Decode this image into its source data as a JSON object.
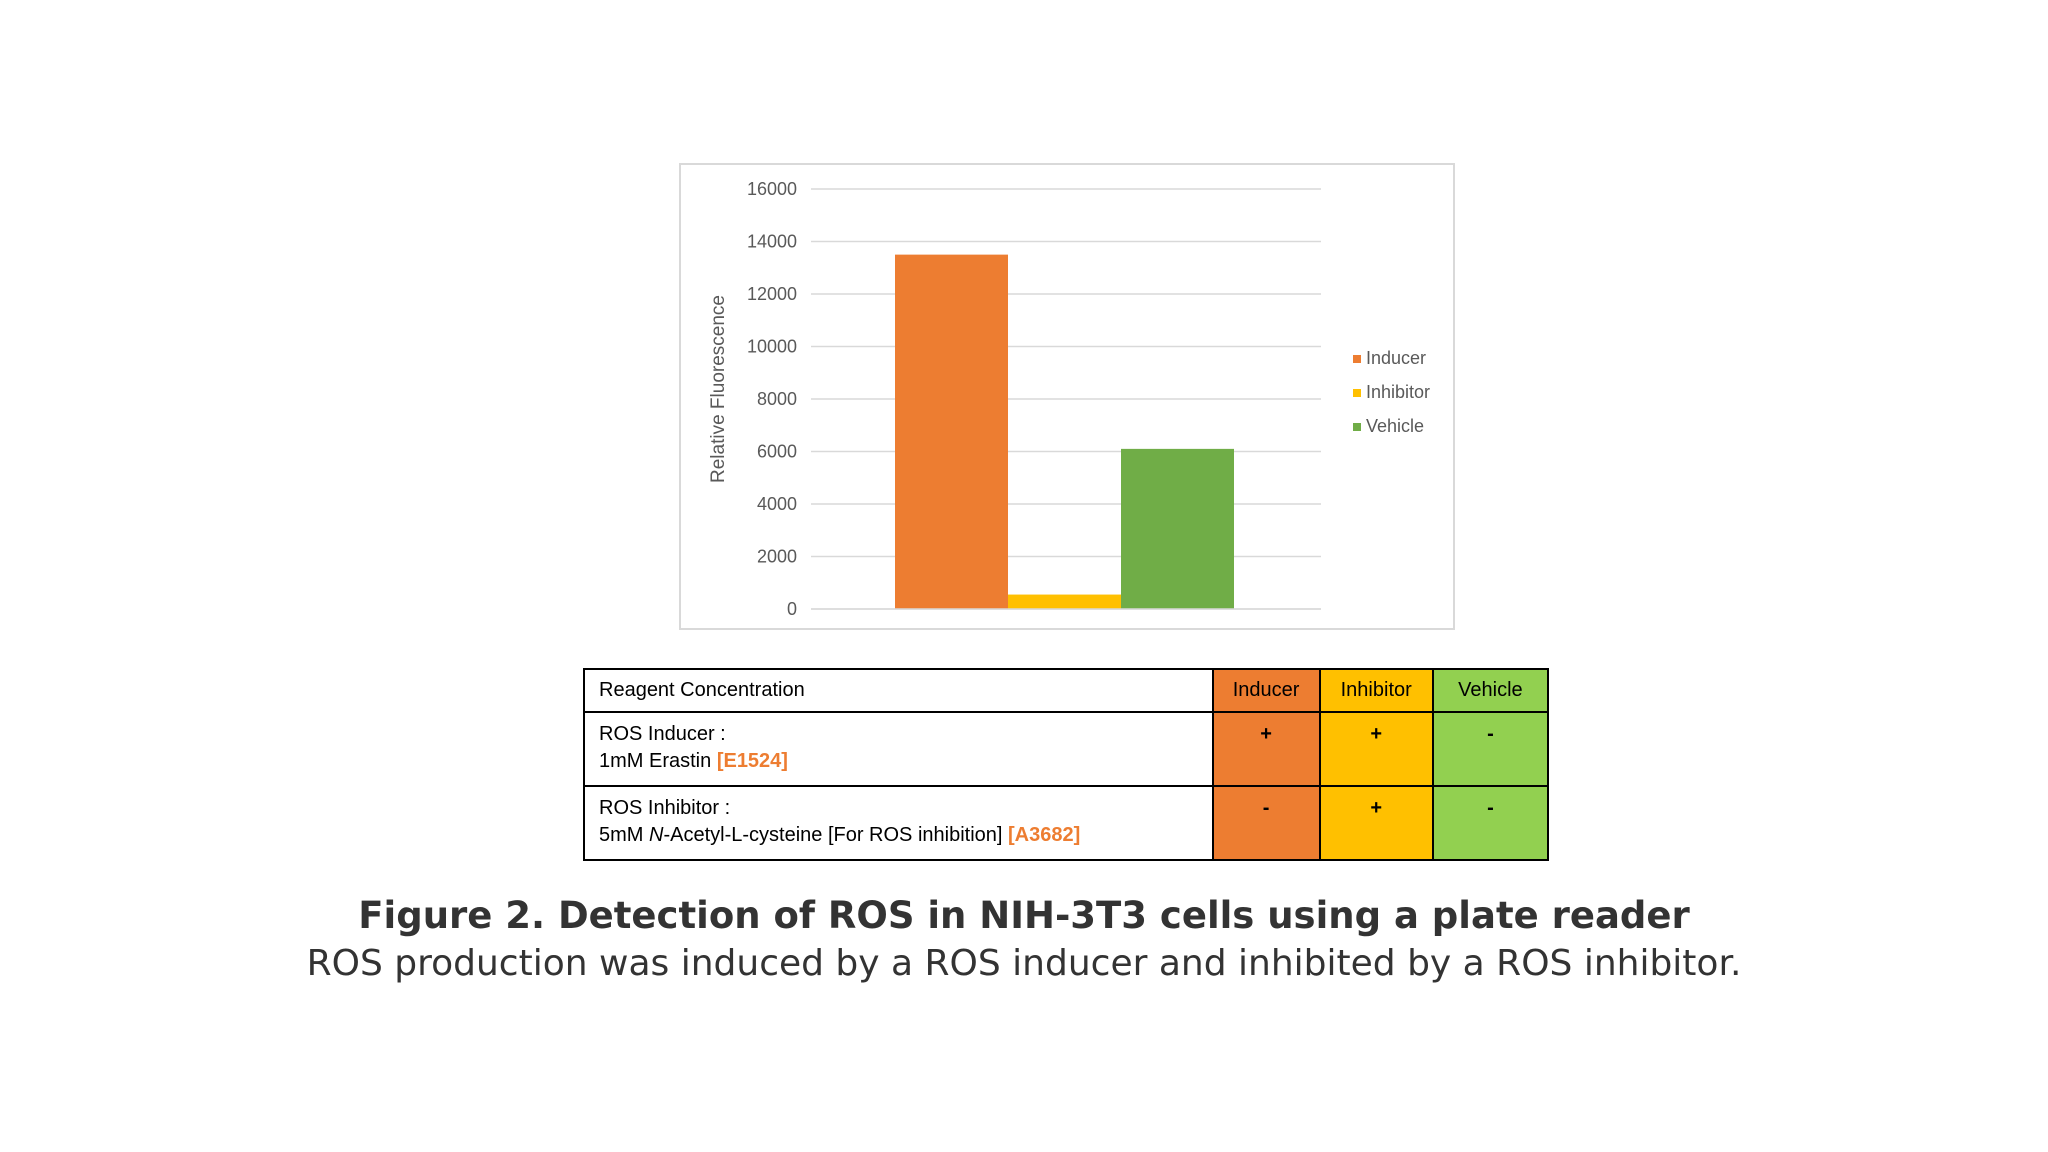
{
  "chart_data": {
    "type": "bar",
    "title": "",
    "xlabel": "",
    "ylabel": "Relative Fluorescence",
    "ylim": [
      0,
      16000
    ],
    "yticks": [
      0,
      2000,
      4000,
      6000,
      8000,
      10000,
      12000,
      14000,
      16000
    ],
    "grid": true,
    "legend_position": "right",
    "series": [
      {
        "name": "Inducer",
        "value": 13500,
        "color": "#ed7d31"
      },
      {
        "name": "Inhibitor",
        "value": 550,
        "color": "#ffc000"
      },
      {
        "name": "Vehicle",
        "value": 6100,
        "color": "#70ad47"
      }
    ]
  },
  "table": {
    "header": {
      "label": "Reagent Concentration",
      "conditions": [
        "Inducer",
        "Inhibitor",
        "Vehicle"
      ]
    },
    "colors": {
      "inducer": "#ed7d31",
      "inhibitor": "#ffc000",
      "vehicle": "#92d050"
    },
    "rows": [
      {
        "line1": "ROS Inducer  :",
        "line2_pre": "1mM Erastin ",
        "line2_code": "[E1524]",
        "marks": [
          "+",
          "+",
          "-"
        ]
      },
      {
        "line1": "ROS Inhibitor  :",
        "line2_pre": "5mM ",
        "line2_italic": "N",
        "line2_mid": "-Acetyl-L-cysteine  [For ROS inhibition]  ",
        "line2_code": "[A3682]",
        "marks": [
          "-",
          "+",
          "-"
        ]
      }
    ]
  },
  "caption": {
    "title": "Figure 2. Detection of ROS in NIH-3T3 cells using a plate reader",
    "text": "ROS production was induced by a ROS inducer and inhibited by a ROS inhibitor."
  }
}
